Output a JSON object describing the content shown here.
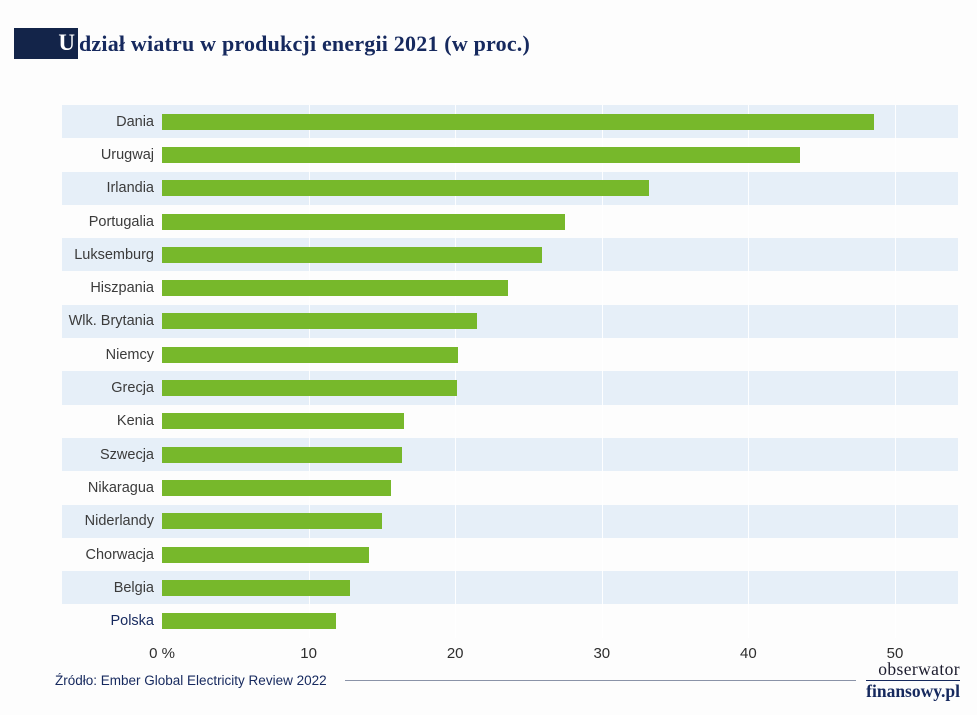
{
  "header": {
    "title_initial": "U",
    "title_rest": "dział wiatru w produkcji energii 2021 (w proc.)"
  },
  "chart_data": {
    "type": "bar",
    "orientation": "horizontal",
    "title": "Udział wiatru w produkcji energii 2021 (w proc.)",
    "categories": [
      "Dania",
      "Urugwaj",
      "Irlandia",
      "Portugalia",
      "Luksemburg",
      "Hiszpania",
      "Wlk. Brytania",
      "Niemcy",
      "Grecja",
      "Kenia",
      "Szwecja",
      "Nikaragua",
      "Niderlandy",
      "Chorwacja",
      "Belgia",
      "Polska"
    ],
    "values": [
      48.6,
      43.5,
      33.2,
      27.5,
      25.9,
      23.6,
      21.5,
      20.2,
      20.1,
      16.5,
      16.4,
      15.6,
      15.0,
      14.1,
      12.8,
      11.9
    ],
    "xlim": [
      0,
      50
    ],
    "x_ticks": [
      0,
      10,
      20,
      30,
      40,
      50
    ],
    "x_tick_labels": [
      "0 %",
      "10",
      "20",
      "30",
      "40",
      "50"
    ],
    "highlighted_category": "Polska",
    "bar_color": "#77b82b",
    "band_color": "#e6eff8",
    "grid": true,
    "legend": false,
    "xlabel": "",
    "ylabel": ""
  },
  "footer": {
    "source": "Źródło: Ember Global Electricity Review 2022",
    "logo_line1": "obserwator",
    "logo_line2": "finansowy.pl"
  },
  "colors": {
    "navy": "#16295e",
    "green": "#77b82b",
    "band": "#e6eff8",
    "title_block": "#132449"
  }
}
